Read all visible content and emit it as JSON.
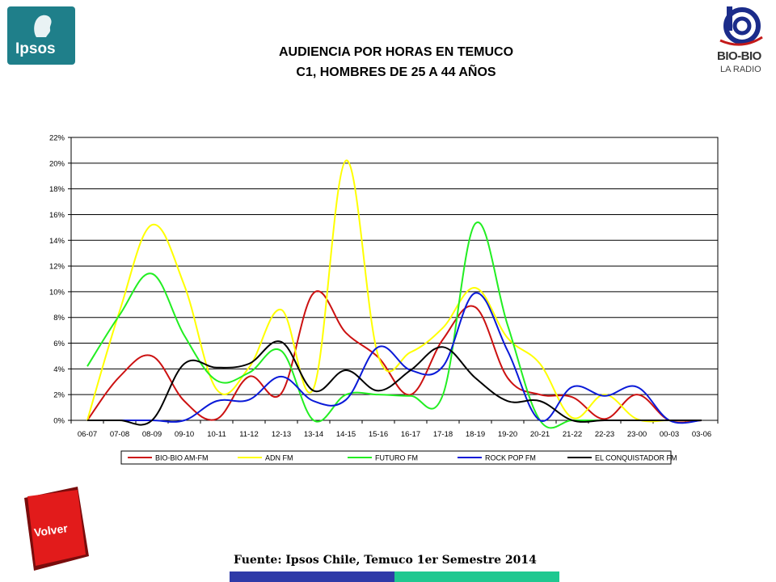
{
  "logos": {
    "ipsos": "Ipsos",
    "biobio_name": "BIO-BIO",
    "biobio_sub": "LA RADIO"
  },
  "header": {
    "title_line1": "AUDIENCIA POR HORAS EN TEMUCO",
    "title_line2": "C1, HOMBRES DE 25 A 44 AÑOS"
  },
  "nav": {
    "back_label": "Volver"
  },
  "footer": {
    "source": "Fuente: Ipsos Chile, Temuco 1er Semestre 2014"
  },
  "chart_data": {
    "type": "line",
    "categories": [
      "06-07",
      "07-08",
      "08-09",
      "09-10",
      "10-11",
      "11-12",
      "12-13",
      "13-14",
      "14-15",
      "15-16",
      "16-17",
      "17-18",
      "18-19",
      "19-20",
      "20-21",
      "21-22",
      "22-23",
      "23-00",
      "00-03",
      "03-06"
    ],
    "ylim": [
      0,
      22
    ],
    "yticks": [
      0,
      2,
      4,
      6,
      8,
      10,
      12,
      14,
      16,
      18,
      20,
      22
    ],
    "ytick_labels": [
      "0%",
      "2%",
      "4%",
      "6%",
      "8%",
      "10%",
      "12%",
      "14%",
      "16%",
      "18%",
      "20%",
      "22%"
    ],
    "grid": true,
    "legend_position": "bottom",
    "series": [
      {
        "name": "BIO-BIO AM-FM",
        "color": "#cc1111",
        "values": [
          0,
          3.4,
          5.0,
          1.5,
          0.1,
          3.4,
          2.1,
          9.9,
          6.8,
          4.9,
          2.0,
          6.3,
          8.8,
          3.3,
          2.0,
          1.8,
          0.1,
          2.0,
          0,
          0
        ]
      },
      {
        "name": "ADN FM",
        "color": "#ffff00",
        "values": [
          0,
          8.5,
          15.2,
          10.5,
          2.4,
          4.1,
          8.6,
          2.5,
          20.2,
          5.0,
          5.3,
          7.2,
          10.3,
          6.4,
          4.4,
          0.2,
          2.0,
          0.1,
          0,
          0
        ]
      },
      {
        "name": "FUTURO FM",
        "color": "#22ee22",
        "values": [
          4.2,
          8.2,
          11.4,
          6.6,
          3.1,
          3.7,
          5.4,
          0,
          2.0,
          2.0,
          1.9,
          2.0,
          15.3,
          7.4,
          0,
          0,
          0,
          0,
          0,
          0
        ]
      },
      {
        "name": "ROCK  POP FM",
        "color": "#0a1ad8",
        "values": [
          0,
          0,
          0,
          0,
          1.5,
          1.6,
          3.4,
          1.5,
          1.6,
          5.7,
          3.9,
          4.2,
          9.9,
          5.4,
          0,
          2.6,
          1.9,
          2.6,
          0,
          0
        ]
      },
      {
        "name": "EL CONQUISTADOR FM",
        "color": "#000000",
        "values": [
          0,
          0,
          0,
          4.4,
          4.1,
          4.4,
          6.1,
          2.3,
          3.9,
          2.3,
          3.9,
          5.7,
          3.3,
          1.5,
          1.5,
          0,
          0,
          0,
          0,
          0
        ]
      }
    ]
  }
}
